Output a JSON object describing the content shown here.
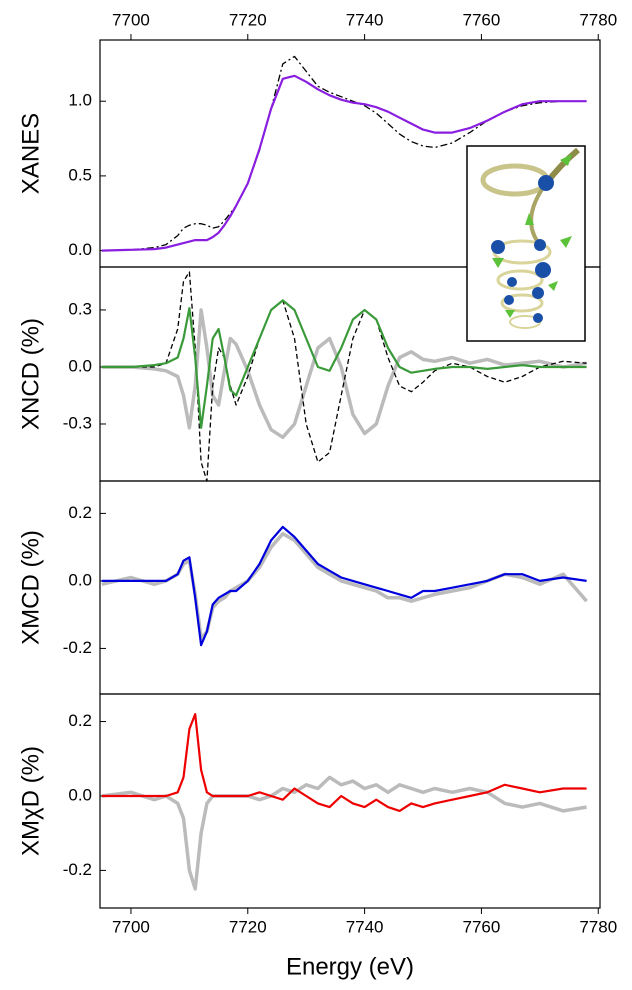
{
  "chart_data": [
    {
      "type": "line",
      "ylabel": "XANES",
      "x": [
        7695,
        7700,
        7704,
        7706,
        7708,
        7709,
        7710,
        7711,
        7712,
        7713,
        7714,
        7715,
        7716,
        7717,
        7718,
        7720,
        7722,
        7724,
        7726,
        7728,
        7730,
        7732,
        7734,
        7736,
        7738,
        7740,
        7742,
        7744,
        7746,
        7748,
        7750,
        7752,
        7755,
        7758,
        7761,
        7764,
        7767,
        7770,
        7774,
        7778
      ],
      "series": [
        {
          "color": "#000000",
          "dash": "dashdot",
          "values": [
            0,
            0.005,
            0.02,
            0.04,
            0.1,
            0.15,
            0.17,
            0.18,
            0.18,
            0.17,
            0.15,
            0.16,
            0.2,
            0.25,
            0.3,
            0.45,
            0.67,
            0.95,
            1.25,
            1.3,
            1.2,
            1.1,
            1.06,
            1.03,
            1.0,
            0.97,
            0.92,
            0.85,
            0.78,
            0.73,
            0.7,
            0.69,
            0.72,
            0.79,
            0.87,
            0.93,
            0.97,
            0.99,
            1.0,
            1.0
          ]
        },
        {
          "color": "#8a1ee0",
          "values": [
            0,
            0.005,
            0.01,
            0.02,
            0.04,
            0.05,
            0.06,
            0.07,
            0.07,
            0.07,
            0.09,
            0.12,
            0.17,
            0.23,
            0.3,
            0.45,
            0.68,
            0.95,
            1.15,
            1.17,
            1.13,
            1.08,
            1.04,
            1.01,
            0.99,
            0.98,
            0.96,
            0.93,
            0.89,
            0.85,
            0.81,
            0.79,
            0.79,
            0.82,
            0.87,
            0.93,
            0.98,
            1.0,
            1.0,
            1.0
          ]
        }
      ],
      "xlim": [
        7694.7,
        7780.3
      ],
      "xticks": [
        7700,
        7720,
        7740,
        7760,
        7780
      ],
      "ylim": [
        -0.11,
        1.41
      ],
      "yticks": [
        {
          "value": 0,
          "label": "0.0"
        },
        0.5,
        {
          "value": 1,
          "label": "1.0"
        }
      ]
    },
    {
      "type": "line",
      "ylabel": "XNCD (%)",
      "x": [
        7695,
        7700,
        7704,
        7706,
        7708,
        7709,
        7710,
        7711,
        7712,
        7713,
        7714,
        7715,
        7716,
        7717,
        7718,
        7720,
        7722,
        7724,
        7726,
        7728,
        7730,
        7732,
        7734,
        7736,
        7738,
        7740,
        7742,
        7744,
        7746,
        7748,
        7750,
        7752,
        7755,
        7758,
        7761,
        7764,
        7767,
        7770,
        7774,
        7778
      ],
      "series": [
        {
          "color": "#bbbbbb",
          "values": [
            0,
            0,
            -0.01,
            -0.02,
            -0.05,
            -0.15,
            -0.32,
            -0.1,
            0.3,
            0.1,
            -0.15,
            -0.2,
            -0.02,
            0.15,
            0.12,
            -0.02,
            -0.2,
            -0.33,
            -0.37,
            -0.3,
            -0.1,
            0.1,
            0.15,
            0,
            -0.25,
            -0.35,
            -0.3,
            -0.1,
            0.05,
            0.08,
            0.04,
            0.03,
            0.05,
            0.02,
            0.04,
            0.01,
            0.02,
            0.03,
            0,
            0.02
          ]
        },
        {
          "color": "#000000",
          "dash": "dashed",
          "values": [
            0,
            0,
            0,
            0.02,
            0.2,
            0.45,
            0.5,
            0.1,
            -0.5,
            -0.6,
            -0.1,
            0.1,
            0.05,
            -0.1,
            -0.2,
            -0.05,
            0.15,
            0.3,
            0.35,
            0.15,
            -0.3,
            -0.5,
            -0.45,
            -0.15,
            0.15,
            0.3,
            0.25,
            0.05,
            -0.1,
            -0.13,
            -0.08,
            -0.02,
            0.02,
            0,
            -0.05,
            -0.08,
            -0.05,
            0,
            0.03,
            0.02
          ]
        },
        {
          "color": "#3a9a3a",
          "values": [
            0,
            0,
            0.01,
            0.02,
            0.05,
            0.15,
            0.31,
            0.05,
            -0.32,
            -0.1,
            0.15,
            0.2,
            0.05,
            -0.12,
            -0.15,
            0,
            0.15,
            0.3,
            0.35,
            0.3,
            0.15,
            0,
            -0.02,
            0.1,
            0.25,
            0.3,
            0.25,
            0.1,
            0,
            -0.03,
            -0.02,
            -0.01,
            0,
            0,
            -0.01,
            0,
            0.01,
            0,
            0,
            0
          ]
        }
      ],
      "xlim": [
        7694.7,
        7780.3
      ],
      "ylim": [
        -0.6,
        0.526
      ],
      "yticks": [
        -0.3,
        {
          "value": 0,
          "label": "0.0"
        },
        0.3
      ]
    },
    {
      "type": "line",
      "ylabel": "XMCD (%)",
      "x": [
        7695,
        7700,
        7704,
        7706,
        7708,
        7709,
        7710,
        7711,
        7712,
        7713,
        7714,
        7715,
        7716,
        7717,
        7718,
        7720,
        7722,
        7724,
        7726,
        7728,
        7730,
        7732,
        7734,
        7736,
        7738,
        7740,
        7742,
        7744,
        7746,
        7748,
        7750,
        7752,
        7755,
        7758,
        7761,
        7764,
        7767,
        7770,
        7774,
        7778
      ],
      "series": [
        {
          "color": "#bbbbbb",
          "values": [
            -0.01,
            0.01,
            -0.01,
            0,
            0.02,
            0.05,
            0.06,
            -0.04,
            -0.17,
            -0.15,
            -0.08,
            -0.06,
            -0.05,
            -0.03,
            -0.02,
            0,
            0.04,
            0.1,
            0.14,
            0.12,
            0.08,
            0.04,
            0.02,
            0,
            -0.01,
            -0.02,
            -0.03,
            -0.05,
            -0.05,
            -0.06,
            -0.05,
            -0.04,
            -0.03,
            -0.02,
            0,
            0.02,
            0.01,
            -0.01,
            0.02,
            -0.06
          ]
        },
        {
          "color": "#0000dd",
          "values": [
            0,
            0,
            0,
            0,
            0.02,
            0.06,
            0.07,
            -0.05,
            -0.19,
            -0.15,
            -0.07,
            -0.05,
            -0.04,
            -0.03,
            -0.03,
            0,
            0.05,
            0.12,
            0.16,
            0.13,
            0.09,
            0.05,
            0.03,
            0.01,
            0,
            -0.01,
            -0.02,
            -0.03,
            -0.04,
            -0.05,
            -0.03,
            -0.03,
            -0.02,
            -0.01,
            0,
            0.02,
            0.02,
            0,
            0.01,
            0
          ]
        }
      ],
      "xlim": [
        7694.7,
        7780.3
      ],
      "ylim": [
        -0.335,
        0.296
      ],
      "yticks": [
        -0.2,
        {
          "value": 0,
          "label": "0.0"
        },
        0.2
      ]
    },
    {
      "type": "line",
      "ylabel": "XMχD (%)",
      "xlabel": "Energy (eV)",
      "x": [
        7695,
        7700,
        7704,
        7706,
        7708,
        7709,
        7710,
        7711,
        7712,
        7713,
        7714,
        7715,
        7716,
        7717,
        7718,
        7720,
        7722,
        7724,
        7726,
        7728,
        7730,
        7732,
        7734,
        7736,
        7738,
        7740,
        7742,
        7744,
        7746,
        7748,
        7750,
        7752,
        7755,
        7758,
        7761,
        7764,
        7767,
        7770,
        7774,
        7778
      ],
      "series": [
        {
          "color": "#bbbbbb",
          "values": [
            0,
            0.01,
            -0.01,
            0,
            -0.02,
            -0.06,
            -0.2,
            -0.25,
            -0.1,
            -0.02,
            0,
            0,
            0,
            0,
            0,
            0,
            -0.01,
            0,
            0.02,
            0.01,
            0.03,
            0.02,
            0.05,
            0.03,
            0.04,
            0.02,
            0.03,
            0.01,
            0.03,
            0.02,
            0.01,
            0.02,
            0.01,
            0.02,
            0.01,
            -0.02,
            -0.03,
            -0.02,
            -0.04,
            -0.03
          ]
        },
        {
          "color": "#ee0000",
          "values": [
            0,
            0,
            0,
            0,
            0.01,
            0.05,
            0.18,
            0.22,
            0.07,
            0.01,
            0,
            0,
            0,
            0,
            0,
            0,
            0.01,
            0,
            -0.01,
            0.02,
            0,
            -0.02,
            -0.03,
            0,
            -0.02,
            -0.03,
            -0.01,
            -0.03,
            -0.04,
            -0.02,
            -0.03,
            -0.02,
            -0.01,
            0,
            0.01,
            0.03,
            0.02,
            0.01,
            0.02,
            0.02
          ]
        }
      ],
      "xlim": [
        7694.7,
        7780.3
      ],
      "xticks": [
        7700,
        7720,
        7740,
        7760,
        7780
      ],
      "ylim": [
        -0.301,
        0.274
      ],
      "yticks": [
        -0.2,
        {
          "value": 0,
          "label": "0.0"
        },
        0.2
      ]
    }
  ]
}
